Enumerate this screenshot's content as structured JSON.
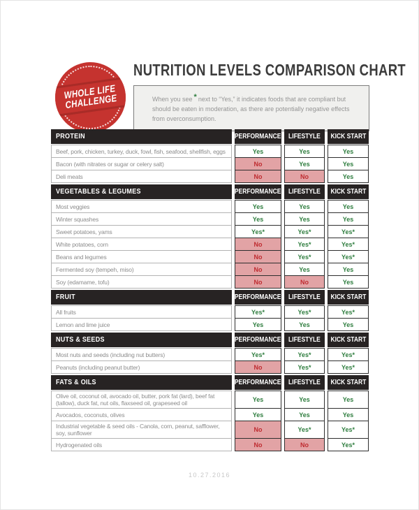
{
  "logo": {
    "line1": "WHOLE LIFE",
    "line2": "CHALLENGE"
  },
  "header": {
    "title": "NUTRITION LEVELS COMPARISON CHART"
  },
  "info_note": {
    "prefix": "When you see",
    "asterisk": "*",
    "suffix": "next to “Yes,” it indicates foods that are compliant but should be eaten in moderation, as there are potentially negative effects from overconsumption."
  },
  "table": {
    "value_columns": [
      "PERFORMANCE",
      "LIFESTYLE",
      "KICK START"
    ],
    "sections": [
      {
        "name": "PROTEIN",
        "rows": [
          {
            "label": "Beef, pork, chicken, turkey, duck, fowl, fish, seafood, shellfish, eggs",
            "values": [
              "Yes",
              "Yes",
              "Yes"
            ]
          },
          {
            "label": "Bacon (with nitrates or sugar or celery salt)",
            "values": [
              "No",
              "Yes",
              "Yes"
            ]
          },
          {
            "label": "Deli meats",
            "values": [
              "No",
              "No",
              "Yes"
            ]
          }
        ]
      },
      {
        "name": "VEGETABLES & LEGUMES",
        "rows": [
          {
            "label": "Most veggies",
            "values": [
              "Yes",
              "Yes",
              "Yes"
            ]
          },
          {
            "label": "Winter squashes",
            "values": [
              "Yes",
              "Yes",
              "Yes"
            ]
          },
          {
            "label": "Sweet potatoes, yams",
            "values": [
              "Yes*",
              "Yes*",
              "Yes*"
            ]
          },
          {
            "label": "White potatoes, corn",
            "values": [
              "No",
              "Yes*",
              "Yes*"
            ]
          },
          {
            "label": "Beans and legumes",
            "values": [
              "No",
              "Yes*",
              "Yes*"
            ]
          },
          {
            "label": "Fermented soy (tempeh, miso)",
            "values": [
              "No",
              "Yes",
              "Yes"
            ]
          },
          {
            "label": "Soy (edamame, tofu)",
            "values": [
              "No",
              "No",
              "Yes"
            ]
          }
        ]
      },
      {
        "name": "FRUIT",
        "rows": [
          {
            "label": "All fruits",
            "values": [
              "Yes*",
              "Yes*",
              "Yes*"
            ]
          },
          {
            "label": "Lemon and lime juice",
            "values": [
              "Yes",
              "Yes",
              "Yes"
            ]
          }
        ]
      },
      {
        "name": "NUTS & SEEDS",
        "rows": [
          {
            "label": "Most nuts and seeds (including nut butters)",
            "values": [
              "Yes*",
              "Yes*",
              "Yes*"
            ]
          },
          {
            "label": "Peanuts (including peanut butter)",
            "values": [
              "No",
              "Yes*",
              "Yes*"
            ]
          }
        ]
      },
      {
        "name": "FATS & OILS",
        "rows": [
          {
            "label": "Olive oil, coconut oil, avocado oil, butter, pork fat (lard), beef fat (tallow), duck fat, nut oils, flaxseed oil, grapeseed oil",
            "values": [
              "Yes",
              "Yes",
              "Yes"
            ]
          },
          {
            "label": "Avocados, coconuts, olives",
            "values": [
              "Yes",
              "Yes",
              "Yes"
            ]
          },
          {
            "label": "Industrial vegetable & seed oils - Canola, corn, peanut, safflower, soy, sunflower",
            "values": [
              "No",
              "Yes*",
              "Yes*"
            ]
          },
          {
            "label": "Hydrogenated oils",
            "values": [
              "No",
              "No",
              "Yes*"
            ]
          }
        ]
      }
    ]
  },
  "footer": {
    "date": "10.27.2016"
  },
  "colors": {
    "brand_red": "#c5332f",
    "brand_red_dark": "#a92b27",
    "header_black": "#272323",
    "yes_green": "#2e7d3e",
    "no_red": "#bf2b30",
    "no_pink_bg": "#e2a3a5",
    "label_gray": "#8c8c8c",
    "note_bg": "#f0f0ee"
  }
}
